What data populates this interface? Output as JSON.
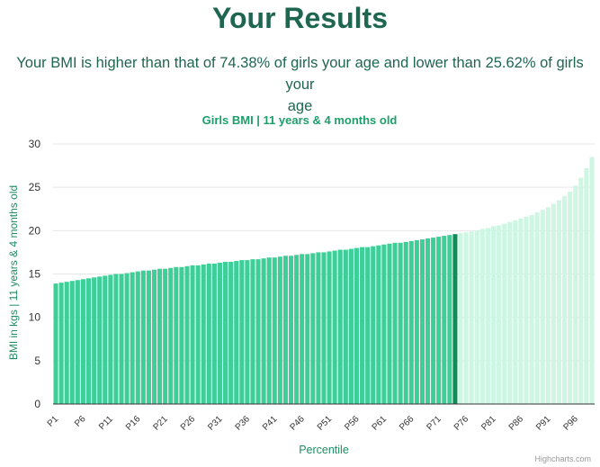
{
  "header": {
    "title": "Your Results",
    "summary_line1": "Your BMI is higher than that of 74.38% of girls your age and lower than 25.62% of girls your",
    "summary_line2": "age"
  },
  "colors": {
    "heading": "#1e6650",
    "bar_below": "#3ecf98",
    "bar_highlight": "#0f8c58",
    "bar_above": "#cdf6e3",
    "axis_text": "#1e8f61",
    "tick_text": "#333333"
  },
  "credit": "Highcharts.com",
  "chart_data": {
    "type": "bar",
    "title": "Girls BMI | 11 years & 4 months old",
    "xlabel": "Percentile",
    "ylabel": "BMI in kgs | 11 years & 4 months old",
    "ylim": [
      0,
      30
    ],
    "yticks": [
      0,
      5,
      10,
      15,
      20,
      25,
      30
    ],
    "grid": true,
    "legend": false,
    "x_tick_labels": [
      "P1",
      "P6",
      "P11",
      "P16",
      "P21",
      "P26",
      "P31",
      "P36",
      "P41",
      "P46",
      "P51",
      "P56",
      "P61",
      "P66",
      "P71",
      "P76",
      "P81",
      "P86",
      "P91",
      "P96"
    ],
    "highlight_percentile": 74,
    "categories": [
      "P1",
      "P2",
      "P3",
      "P4",
      "P5",
      "P6",
      "P7",
      "P8",
      "P9",
      "P10",
      "P11",
      "P12",
      "P13",
      "P14",
      "P15",
      "P16",
      "P17",
      "P18",
      "P19",
      "P20",
      "P21",
      "P22",
      "P23",
      "P24",
      "P25",
      "P26",
      "P27",
      "P28",
      "P29",
      "P30",
      "P31",
      "P32",
      "P33",
      "P34",
      "P35",
      "P36",
      "P37",
      "P38",
      "P39",
      "P40",
      "P41",
      "P42",
      "P43",
      "P44",
      "P45",
      "P46",
      "P47",
      "P48",
      "P49",
      "P50",
      "P51",
      "P52",
      "P53",
      "P54",
      "P55",
      "P56",
      "P57",
      "P58",
      "P59",
      "P60",
      "P61",
      "P62",
      "P63",
      "P64",
      "P65",
      "P66",
      "P67",
      "P68",
      "P69",
      "P70",
      "P71",
      "P72",
      "P73",
      "P74",
      "P75",
      "P76",
      "P77",
      "P78",
      "P79",
      "P80",
      "P81",
      "P82",
      "P83",
      "P84",
      "P85",
      "P86",
      "P87",
      "P88",
      "P89",
      "P90",
      "P91",
      "P92",
      "P93",
      "P94",
      "P95",
      "P96",
      "P97",
      "P98",
      "P99"
    ],
    "values": [
      13.9,
      14.0,
      14.1,
      14.2,
      14.3,
      14.4,
      14.5,
      14.6,
      14.7,
      14.8,
      14.9,
      15.0,
      15.0,
      15.1,
      15.2,
      15.3,
      15.4,
      15.4,
      15.5,
      15.6,
      15.6,
      15.7,
      15.8,
      15.8,
      15.9,
      16.0,
      16.0,
      16.1,
      16.2,
      16.2,
      16.3,
      16.4,
      16.4,
      16.5,
      16.6,
      16.6,
      16.7,
      16.7,
      16.8,
      16.9,
      16.9,
      17.0,
      17.1,
      17.1,
      17.2,
      17.3,
      17.3,
      17.4,
      17.5,
      17.5,
      17.6,
      17.7,
      17.8,
      17.8,
      17.9,
      18.0,
      18.1,
      18.1,
      18.2,
      18.3,
      18.4,
      18.5,
      18.6,
      18.6,
      18.7,
      18.8,
      18.9,
      19.0,
      19.1,
      19.2,
      19.3,
      19.4,
      19.5,
      19.6,
      19.7,
      19.8,
      19.9,
      20.0,
      20.2,
      20.3,
      20.5,
      20.6,
      20.8,
      21.0,
      21.2,
      21.4,
      21.6,
      21.8,
      22.1,
      22.4,
      22.7,
      23.1,
      23.5,
      24.0,
      24.5,
      25.2,
      26.1,
      27.2,
      28.5
    ]
  }
}
